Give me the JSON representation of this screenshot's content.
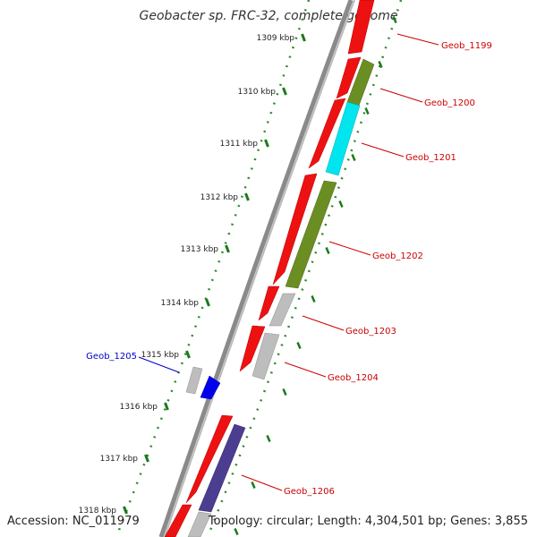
{
  "title": "Geobacter sp. FRC-32, complete genome",
  "accession_label": "Accession: NC_011979",
  "topology_label": "Topology: circular; Length: 4,304,501 bp; Genes: 3,855",
  "ticks": [
    {
      "label": "1309 kbp"
    },
    {
      "label": "1310 kbp"
    },
    {
      "label": "1311 kbp"
    },
    {
      "label": "1312 kbp"
    },
    {
      "label": "1313 kbp"
    },
    {
      "label": "1314 kbp"
    },
    {
      "label": "1315 kbp"
    },
    {
      "label": "1316 kbp"
    },
    {
      "label": "1317 kbp"
    },
    {
      "label": "1318 kbp"
    }
  ],
  "gene_labels": [
    {
      "name": "Geob_1199",
      "color": "#cc0000"
    },
    {
      "name": "Geob_1200",
      "color": "#cc0000"
    },
    {
      "name": "Geob_1201",
      "color": "#cc0000"
    },
    {
      "name": "Geob_1202",
      "color": "#cc0000"
    },
    {
      "name": "Geob_1203",
      "color": "#cc0000"
    },
    {
      "name": "Geob_1204",
      "color": "#cc0000"
    },
    {
      "name": "Geob_1205",
      "color": "#0000cc"
    },
    {
      "name": "Geob_1206",
      "color": "#cc0000"
    }
  ],
  "colors": {
    "backbone": "#888888",
    "cds": "#ee1111",
    "feature_olive": "#6b8e23",
    "feature_cyan": "#00e5ee",
    "feature_gray": "#bdbdbd",
    "feature_blue": "#0000ee",
    "feature_purple": "#4b3d8f",
    "tick": "#1a7a1a",
    "dot": "#2e8b2e"
  }
}
